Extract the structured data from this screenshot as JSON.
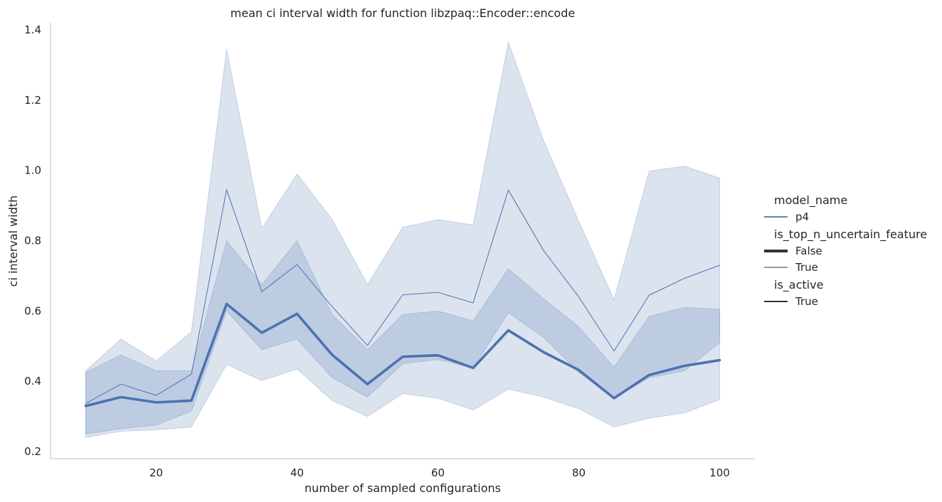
{
  "chart_data": {
    "type": "line",
    "title": "mean ci interval width for function libzpaq::Encoder::encode",
    "xlabel": "number of sampled configurations",
    "ylabel": "ci interval width",
    "xlim": [
      5,
      105
    ],
    "ylim": [
      0.18,
      1.42
    ],
    "xticks": [
      20,
      40,
      60,
      80,
      100
    ],
    "yticks": [
      0.2,
      0.4,
      0.6,
      0.8,
      1.0,
      1.2,
      1.4
    ],
    "ytick_labels": [
      "0.2",
      "0.4",
      "0.6",
      "0.8",
      "1.0",
      "1.2",
      "1.4"
    ],
    "grid": false,
    "color": "#4c72b0",
    "band_opacity": 0.2,
    "x": [
      10,
      15,
      20,
      25,
      30,
      35,
      40,
      45,
      50,
      55,
      60,
      65,
      70,
      75,
      80,
      85,
      90,
      95,
      100
    ],
    "series": [
      {
        "model_name": "p4",
        "is_top_n_uncertain_feature": "False",
        "is_active": "True",
        "line_width": "thick",
        "values": [
          0.33,
          0.355,
          0.34,
          0.345,
          0.62,
          0.538,
          0.592,
          0.475,
          0.392,
          0.47,
          0.474,
          0.438,
          0.545,
          0.483,
          0.432,
          0.352,
          0.418,
          0.444,
          0.46
        ],
        "ci_lower": [
          0.25,
          0.265,
          0.275,
          0.315,
          0.6,
          0.49,
          0.52,
          0.41,
          0.355,
          0.45,
          0.462,
          0.438,
          0.595,
          0.525,
          0.425,
          0.352,
          0.41,
          0.43,
          0.51
        ],
        "ci_upper": [
          0.425,
          0.475,
          0.43,
          0.43,
          0.8,
          0.675,
          0.8,
          0.59,
          0.49,
          0.59,
          0.6,
          0.572,
          0.72,
          0.635,
          0.555,
          0.44,
          0.585,
          0.61,
          0.605
        ]
      },
      {
        "model_name": "p4",
        "is_top_n_uncertain_feature": "True",
        "is_active": "True",
        "line_width": "thin",
        "values": [
          0.337,
          0.392,
          0.36,
          0.42,
          0.945,
          0.655,
          0.732,
          0.612,
          0.502,
          0.646,
          0.653,
          0.623,
          0.944,
          0.772,
          0.64,
          0.486,
          0.645,
          0.693,
          0.73
        ],
        "ci_lower": [
          0.24,
          0.258,
          0.262,
          0.27,
          0.448,
          0.402,
          0.435,
          0.345,
          0.3,
          0.365,
          0.352,
          0.318,
          0.378,
          0.355,
          0.322,
          0.27,
          0.295,
          0.31,
          0.348
        ],
        "ci_upper": [
          0.43,
          0.52,
          0.458,
          0.54,
          1.345,
          0.835,
          0.99,
          0.86,
          0.675,
          0.838,
          0.86,
          0.845,
          1.365,
          1.085,
          0.855,
          0.632,
          0.998,
          1.012,
          0.978
        ]
      }
    ],
    "legend": {
      "placement": "right",
      "sections": [
        {
          "title": "model_name",
          "entries": [
            {
              "label": "p4",
              "style": "hue"
            }
          ]
        },
        {
          "title": "is_top_n_uncertain_feature",
          "entries": [
            {
              "label": "False",
              "style": "thick"
            },
            {
              "label": "True",
              "style": "thin"
            }
          ]
        },
        {
          "title": "is_active",
          "entries": [
            {
              "label": "True",
              "style": "solid"
            }
          ]
        }
      ]
    }
  }
}
